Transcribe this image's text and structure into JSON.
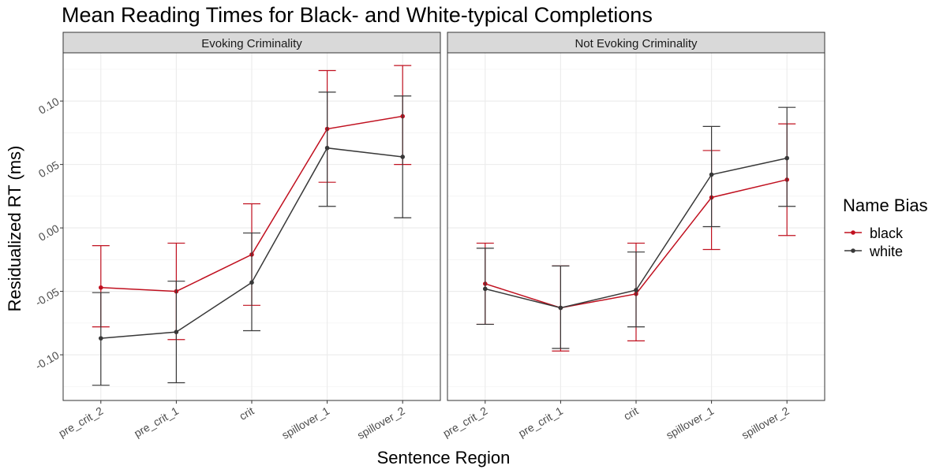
{
  "chart_data": {
    "type": "line",
    "title": "Mean Reading Times for Black- and White-typical Completions",
    "xlabel": "Sentence Region",
    "ylabel": "Residualized RT (ms)",
    "categories": [
      "pre_crit_2",
      "pre_crit_1",
      "crit",
      "spillover_1",
      "spillover_2"
    ],
    "ylim": [
      -0.136,
      0.138
    ],
    "yticks": [
      -0.1,
      -0.05,
      0.0,
      0.05,
      0.1
    ],
    "ytick_labels": [
      "-0.10",
      "-0.05",
      "0.00",
      "0.05",
      "0.10"
    ],
    "grid": true,
    "legend": {
      "title": "Name Bias",
      "position": "right",
      "entries": [
        "black",
        "white"
      ]
    },
    "colors": {
      "black": "#c0101f",
      "white": "#383838"
    },
    "panels": [
      {
        "label": "Evoking Criminality",
        "series": [
          {
            "name": "black",
            "values": [
              -0.047,
              -0.05,
              -0.021,
              0.078,
              0.088
            ],
            "lower": [
              -0.078,
              -0.088,
              -0.061,
              0.036,
              0.05
            ],
            "upper": [
              -0.014,
              -0.012,
              0.019,
              0.124,
              0.128
            ]
          },
          {
            "name": "white",
            "values": [
              -0.087,
              -0.082,
              -0.043,
              0.063,
              0.056
            ],
            "lower": [
              -0.124,
              -0.122,
              -0.081,
              0.017,
              0.008
            ],
            "upper": [
              -0.051,
              -0.042,
              -0.004,
              0.107,
              0.104
            ]
          }
        ]
      },
      {
        "label": "Not Evoking Criminality",
        "series": [
          {
            "name": "black",
            "values": [
              -0.044,
              -0.063,
              -0.052,
              0.024,
              0.038
            ],
            "lower": [
              -0.076,
              -0.097,
              -0.089,
              -0.017,
              -0.006
            ],
            "upper": [
              -0.012,
              -0.03,
              -0.012,
              0.061,
              0.082
            ]
          },
          {
            "name": "white",
            "values": [
              -0.048,
              -0.063,
              -0.049,
              0.042,
              0.055
            ],
            "lower": [
              -0.076,
              -0.095,
              -0.078,
              0.001,
              0.017
            ],
            "upper": [
              -0.016,
              -0.03,
              -0.019,
              0.08,
              0.095
            ]
          }
        ]
      }
    ]
  }
}
